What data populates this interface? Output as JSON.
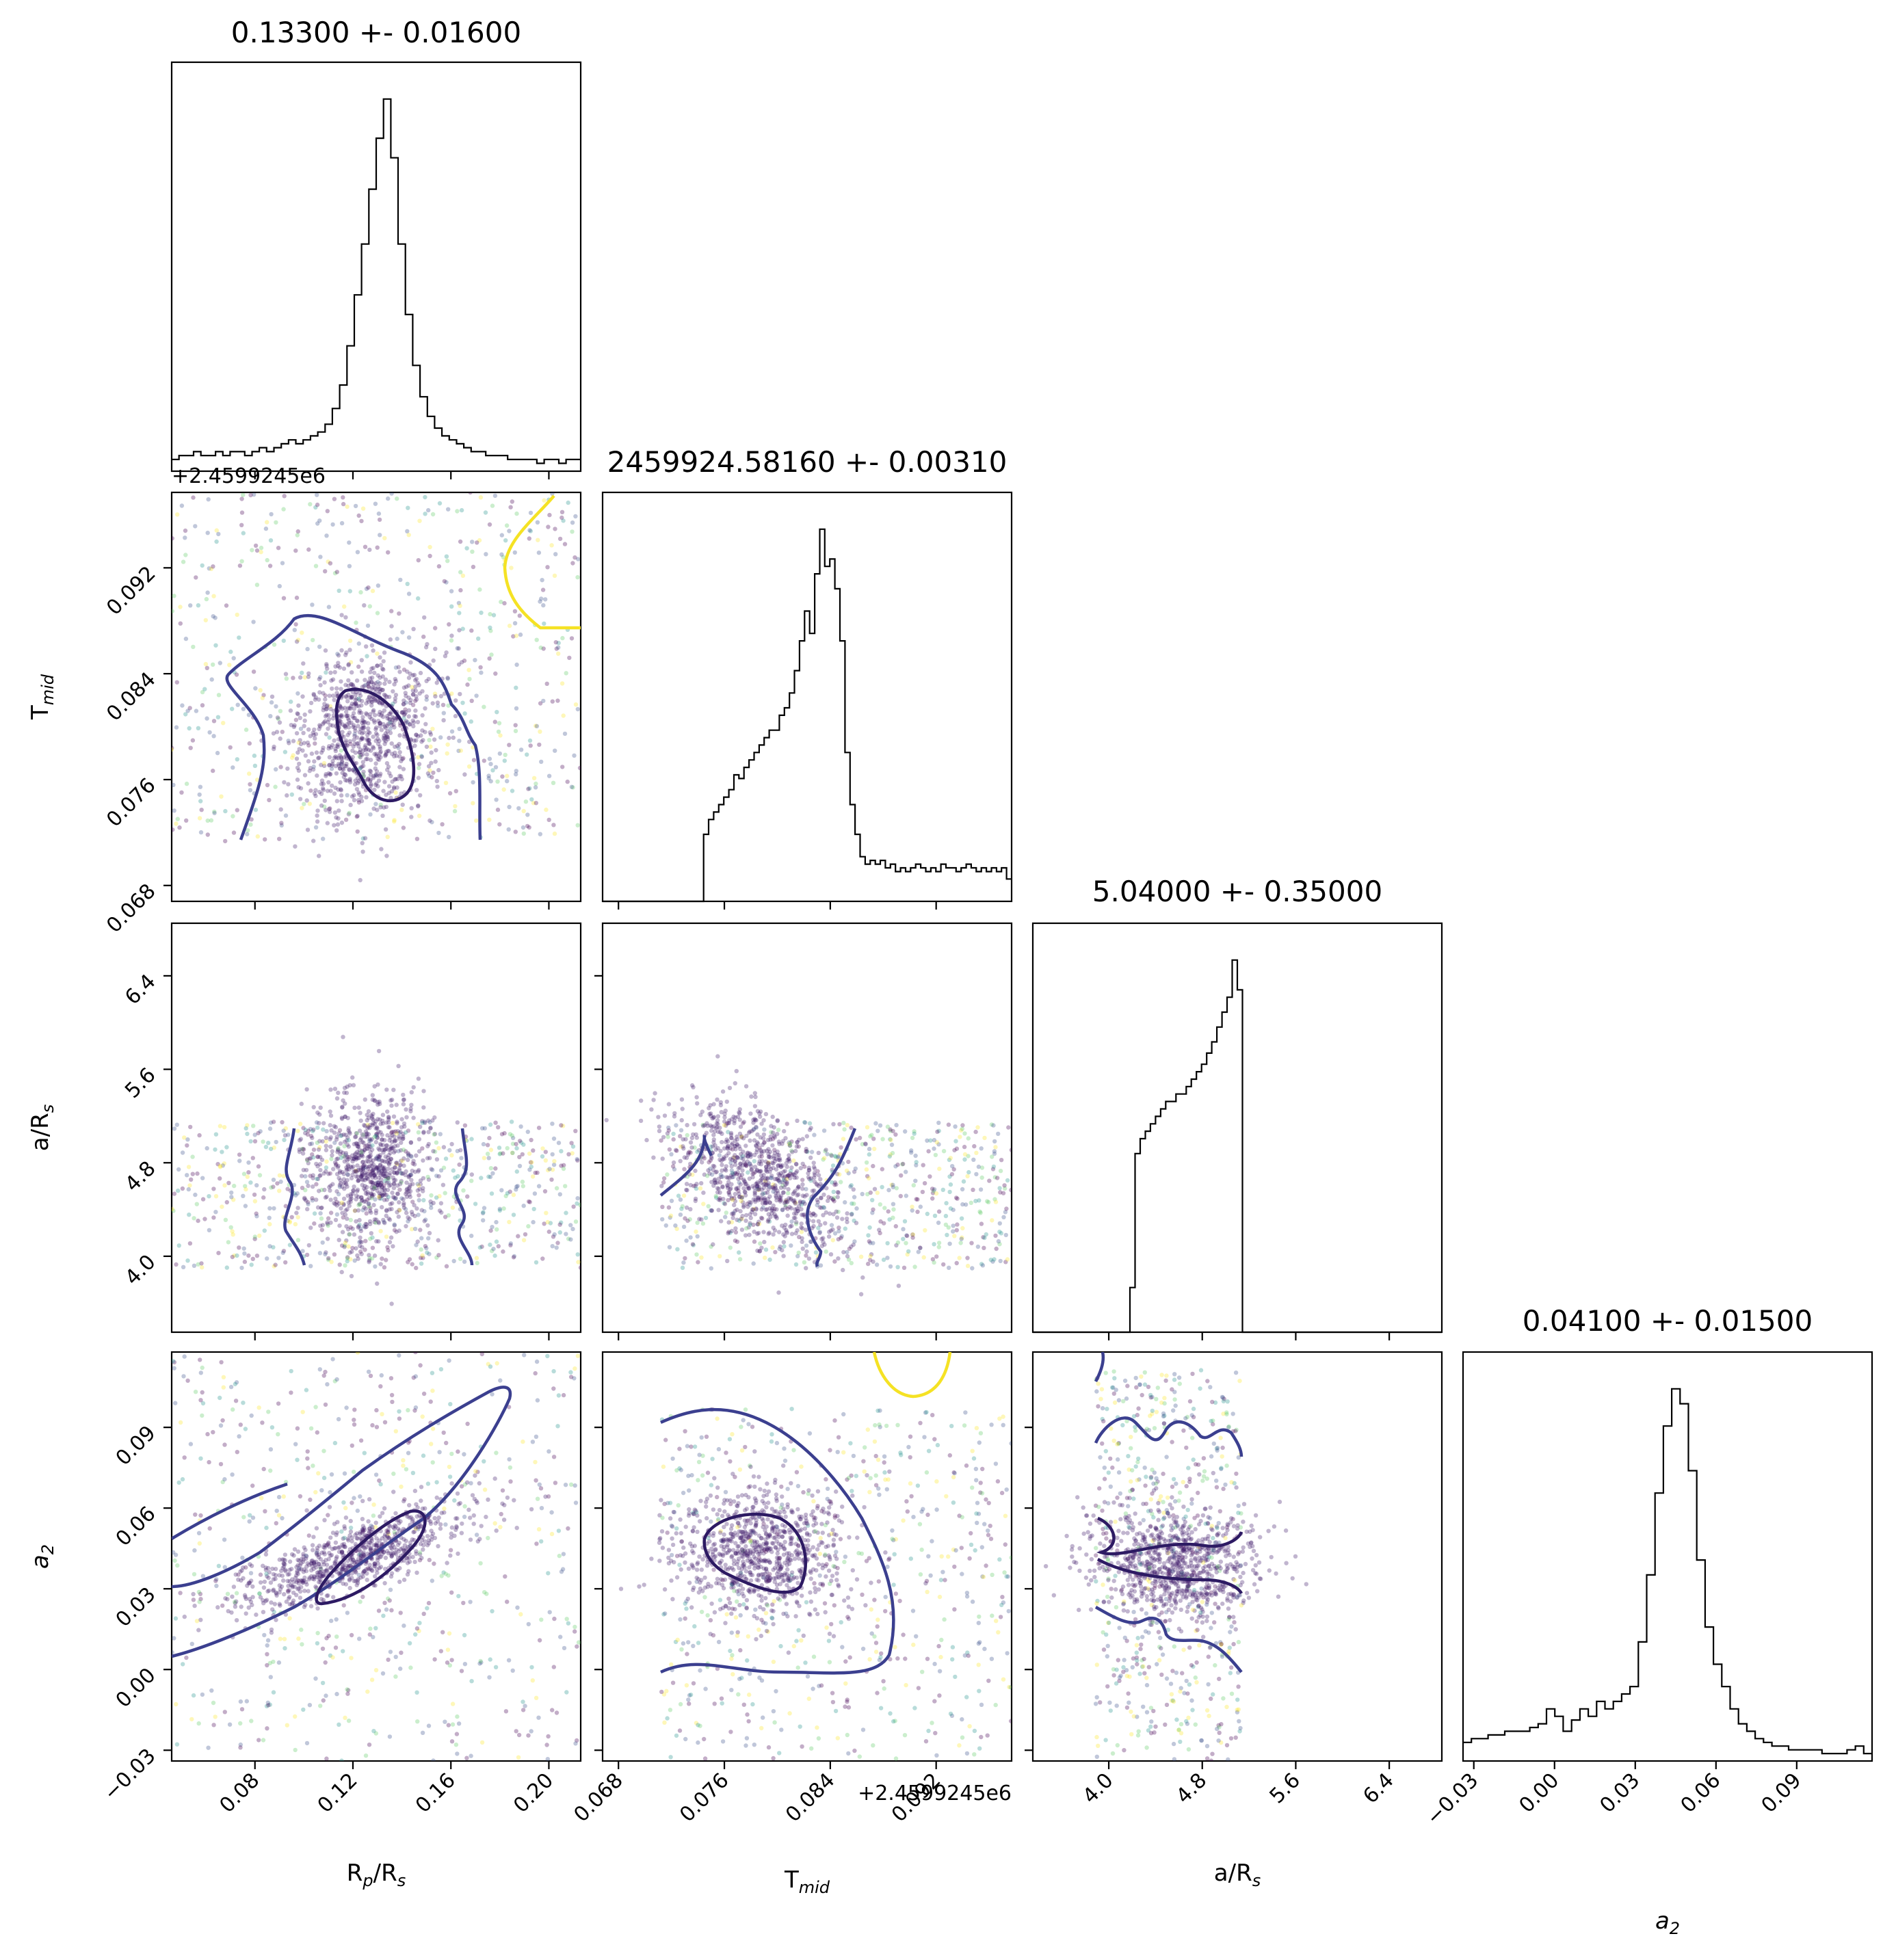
{
  "chart_data": {
    "type": "corner",
    "parameters": [
      {
        "key": "rp",
        "axis_label": "R",
        "axis_label_sub": "p",
        "axis_label_tail": "/R",
        "axis_label_sub2": "s",
        "title": "0.13300 +- 0.01600",
        "range": [
          0.046,
          0.213
        ],
        "ticks": [
          0.08,
          0.12,
          0.16,
          0.2
        ],
        "tick_labels": [
          "0.08",
          "0.12",
          "0.16",
          "0.20"
        ],
        "offset_label": ""
      },
      {
        "key": "tmid",
        "axis_label": "T",
        "axis_label_sub": "mid",
        "axis_label_tail": "",
        "axis_label_sub2": "",
        "title": "2459924.58160 +- 0.00310",
        "range": [
          0.0668,
          0.0977
        ],
        "ticks": [
          0.068,
          0.076,
          0.084,
          0.092
        ],
        "tick_labels": [
          "0.068",
          "0.076",
          "0.084",
          "0.092"
        ],
        "offset_label": "+2.4599245e6"
      },
      {
        "key": "ars",
        "axis_label": "a/R",
        "axis_label_sub": "s",
        "axis_label_tail": "",
        "axis_label_sub2": "",
        "title": "5.04000 +- 0.35000",
        "range": [
          3.35,
          6.85
        ],
        "ticks": [
          4.0,
          4.8,
          5.6,
          6.4
        ],
        "tick_labels": [
          "4.0",
          "4.8",
          "5.6",
          "6.4"
        ],
        "offset_label": ""
      },
      {
        "key": "a2",
        "axis_label": "a",
        "axis_label_sub": "2",
        "axis_label_tail": "",
        "axis_label_sub2": "",
        "axis_label_italic": true,
        "title": "0.04100 +- 0.01500",
        "range": [
          -0.034,
          0.118
        ],
        "ticks": [
          -0.03,
          0.0,
          0.03,
          0.06,
          0.09
        ],
        "tick_labels": [
          "−0.03",
          "0.00",
          "0.03",
          "0.06",
          "0.09"
        ],
        "offset_label": ""
      }
    ],
    "histograms": [
      {
        "param": "rp",
        "counts": [
          3,
          4,
          4,
          5,
          4,
          4,
          5,
          4,
          5,
          5,
          4,
          5,
          6,
          5,
          6,
          7,
          8,
          7,
          8,
          9,
          10,
          12,
          16,
          22,
          32,
          45,
          58,
          72,
          85,
          95,
          80,
          58,
          40,
          27,
          19,
          14,
          11,
          9,
          8,
          7,
          6,
          5,
          5,
          4,
          4,
          4,
          3,
          3,
          3,
          3,
          2,
          3,
          3,
          2,
          3,
          3
        ]
      },
      {
        "param": "tmid",
        "counts": [
          0,
          0,
          0,
          0,
          0,
          0,
          0,
          0,
          0,
          0,
          0,
          0,
          0,
          0,
          0,
          0,
          0,
          0,
          0,
          0,
          18,
          22,
          24,
          26,
          28,
          30,
          34,
          33,
          36,
          38,
          40,
          42,
          44,
          46,
          46,
          50,
          52,
          56,
          62,
          70,
          78,
          72,
          88,
          100,
          90,
          92,
          84,
          70,
          40,
          26,
          18,
          12,
          10,
          11,
          10,
          11,
          9,
          10,
          8,
          9,
          8,
          9,
          10,
          9,
          8,
          9,
          8,
          10,
          9,
          9,
          8,
          9,
          10,
          9,
          8,
          9,
          8,
          9,
          8,
          9,
          6
        ]
      },
      {
        "param": "ars",
        "counts": [
          0,
          0,
          0,
          0,
          0,
          0,
          0,
          0,
          0,
          0,
          0,
          0,
          0,
          0,
          0,
          0,
          0,
          0,
          0,
          12,
          48,
          52,
          54,
          56,
          58,
          60,
          62,
          62,
          64,
          64,
          66,
          68,
          70,
          72,
          75,
          78,
          82,
          86,
          90,
          100,
          92,
          0,
          0,
          0,
          0,
          0,
          0,
          0,
          0,
          0,
          0,
          0,
          0,
          0,
          0,
          0,
          0,
          0,
          0,
          0,
          0,
          0,
          0,
          0,
          0,
          0,
          0,
          0,
          0,
          0,
          0,
          0,
          0,
          0,
          0,
          0,
          0,
          0,
          0,
          0
        ]
      },
      {
        "param": "a2",
        "counts": [
          5,
          6,
          6,
          7,
          7,
          8,
          8,
          8,
          9,
          10,
          14,
          12,
          8,
          11,
          14,
          12,
          16,
          14,
          16,
          18,
          20,
          32,
          50,
          72,
          90,
          100,
          96,
          78,
          54,
          36,
          26,
          20,
          14,
          10,
          8,
          6,
          5,
          4,
          4,
          3,
          3,
          3,
          3,
          2,
          2,
          2,
          3,
          4,
          2
        ]
      }
    ],
    "scatter_point_colormap": "viridis",
    "contour_levels": 2,
    "contour_colors": [
      "#2d1a63",
      "#3b3f8f",
      "#f5e224"
    ]
  }
}
